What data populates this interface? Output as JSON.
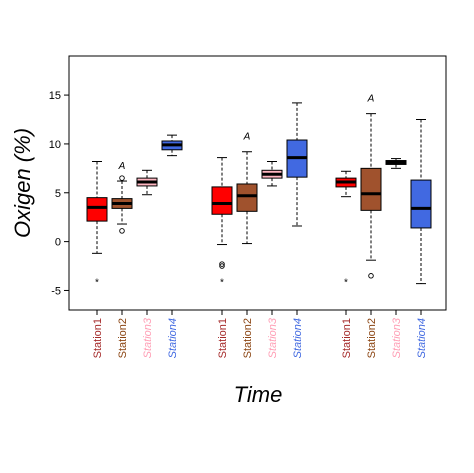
{
  "chart_data": {
    "type": "box",
    "ylabel": "Oxigen (%)",
    "xlabel": "Time",
    "ylim": [
      -7,
      19
    ],
    "yticks": [
      -5,
      0,
      5,
      10,
      15
    ],
    "series_names": [
      "Station1",
      "Station2",
      "Station3",
      "Station4"
    ],
    "colors": {
      "Station1": "#ff0000",
      "Station2": "#a0522d",
      "Station3": "#ffb6c1",
      "Station4": "#4169e1"
    },
    "label_colors": {
      "Station1": "#a52a2a",
      "Station2": "#8b4513",
      "Station3": "#ff9eb5",
      "Station4": "#4169e1"
    },
    "groups": [
      {
        "boxes": [
          {
            "station": "Station1",
            "whisker_low": -1.2,
            "q1": 2.1,
            "median": 3.5,
            "q3": 4.5,
            "whisker_high": 8.2,
            "outliers": [
              {
                "value": -4.1,
                "symbol": "*"
              }
            ],
            "annotation": ""
          },
          {
            "station": "Station2",
            "whisker_low": 1.8,
            "q1": 3.4,
            "median": 3.9,
            "q3": 4.4,
            "whisker_high": 6.2,
            "outliers": [
              {
                "value": 6.5,
                "symbol": "o"
              },
              {
                "value": 1.1,
                "symbol": "o"
              }
            ],
            "annotation": "A"
          },
          {
            "station": "Station3",
            "whisker_low": 4.8,
            "q1": 5.7,
            "median": 6.1,
            "q3": 6.5,
            "whisker_high": 7.3,
            "outliers": [],
            "annotation": ""
          },
          {
            "station": "Station4",
            "whisker_low": 8.8,
            "q1": 9.4,
            "median": 9.9,
            "q3": 10.3,
            "whisker_high": 10.9,
            "outliers": [],
            "annotation": ""
          }
        ]
      },
      {
        "boxes": [
          {
            "station": "Station1",
            "whisker_low": -0.3,
            "q1": 2.8,
            "median": 3.9,
            "q3": 5.6,
            "whisker_high": 8.6,
            "outliers": [
              {
                "value": -2.3,
                "symbol": "o"
              },
              {
                "value": -2.5,
                "symbol": "o"
              },
              {
                "value": -4.1,
                "symbol": "*"
              }
            ],
            "annotation": ""
          },
          {
            "station": "Station2",
            "whisker_low": -0.2,
            "q1": 3.1,
            "median": 4.7,
            "q3": 5.9,
            "whisker_high": 9.2,
            "outliers": [],
            "annotation": "A"
          },
          {
            "station": "Station3",
            "whisker_low": 5.7,
            "q1": 6.5,
            "median": 6.9,
            "q3": 7.3,
            "whisker_high": 8.2,
            "outliers": [],
            "annotation": ""
          },
          {
            "station": "Station4",
            "whisker_low": 1.6,
            "q1": 6.6,
            "median": 8.6,
            "q3": 10.4,
            "whisker_high": 14.2,
            "outliers": [],
            "annotation": ""
          }
        ]
      },
      {
        "boxes": [
          {
            "station": "Station1",
            "whisker_low": 4.6,
            "q1": 5.6,
            "median": 6.1,
            "q3": 6.5,
            "whisker_high": 7.2,
            "outliers": [
              {
                "value": -4.1,
                "symbol": "*"
              }
            ],
            "annotation": ""
          },
          {
            "station": "Station2",
            "whisker_low": -1.9,
            "q1": 3.2,
            "median": 4.9,
            "q3": 7.5,
            "whisker_high": 13.1,
            "outliers": [
              {
                "value": -3.5,
                "symbol": "o"
              }
            ],
            "annotation": "A"
          },
          {
            "station": "Station3",
            "whisker_low": 7.5,
            "q1": 7.9,
            "median": 8.1,
            "q3": 8.3,
            "whisker_high": 8.5,
            "outliers": [],
            "annotation": ""
          },
          {
            "station": "Station4",
            "whisker_low": -4.3,
            "q1": 1.4,
            "median": 3.4,
            "q3": 6.3,
            "whisker_high": 12.5,
            "outliers": [],
            "annotation": ""
          }
        ]
      }
    ]
  }
}
